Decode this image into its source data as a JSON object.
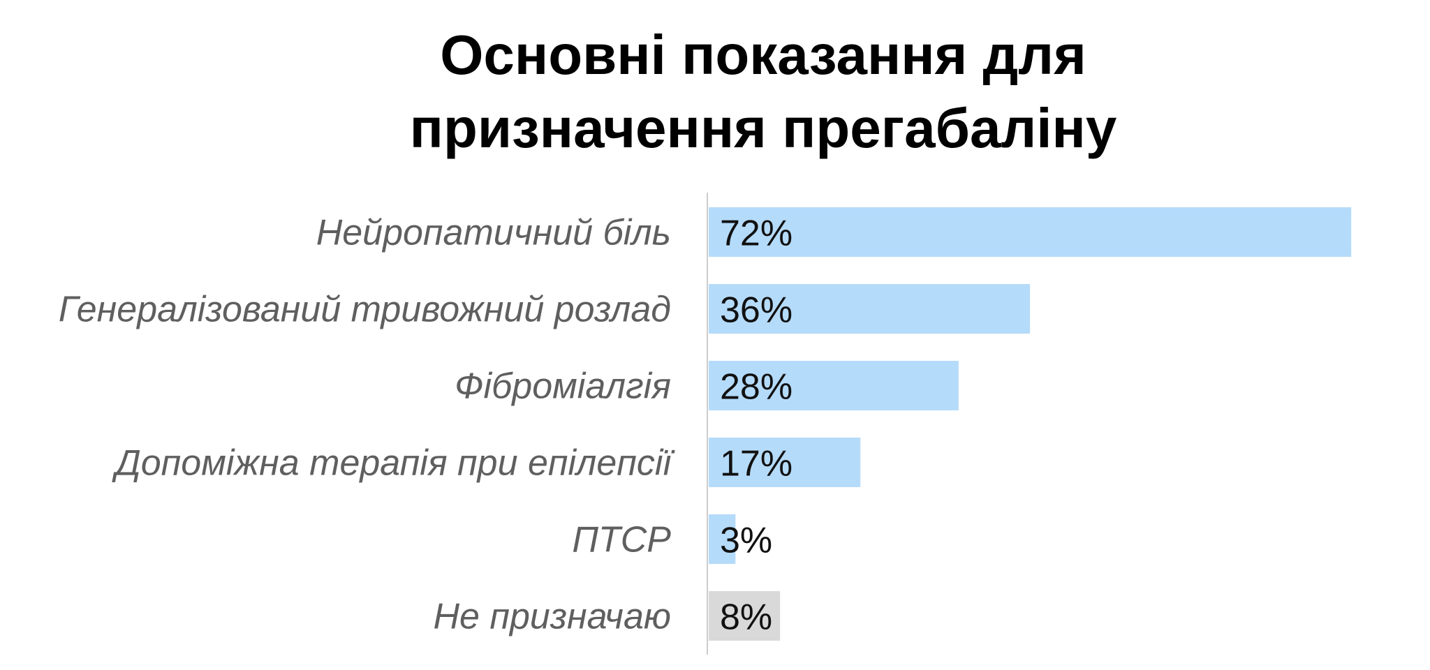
{
  "chart_data": {
    "type": "bar",
    "orientation": "horizontal",
    "title_lines": [
      "Основні показання для",
      "призначення прегабаліну"
    ],
    "categories": [
      "Нейропатичний біль",
      "Генералізований тривожний розлад",
      "Фіброміалгія",
      "Допоміжна терапія при епілепсії",
      "ПТСР",
      "Не призначаю"
    ],
    "values": [
      72,
      36,
      28,
      17,
      3,
      8
    ],
    "value_labels": [
      "72%",
      "36%",
      "28%",
      "17%",
      "3%",
      "8%"
    ],
    "bar_colors": [
      "#b5dbfa",
      "#b5dbfa",
      "#b5dbfa",
      "#b5dbfa",
      "#b5dbfa",
      "#d9d9d9"
    ],
    "xlim": [
      0,
      100
    ],
    "grid": false,
    "legend": "none"
  }
}
